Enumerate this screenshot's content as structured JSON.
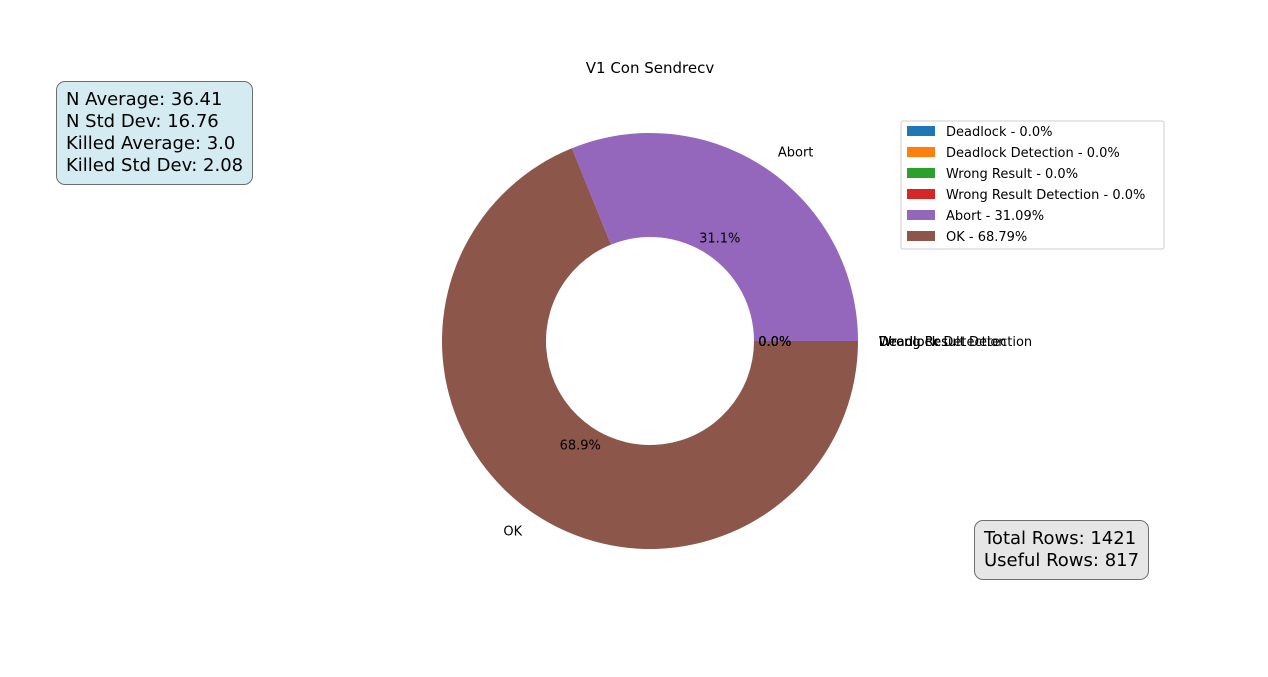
{
  "chart_data": {
    "type": "pie",
    "donut": true,
    "title": "V1 Con Sendrecv",
    "slices": [
      {
        "label": "Deadlock",
        "value": 0.0,
        "pct_label": "0.0%",
        "legend": "Deadlock - 0.0%",
        "color": "#1f77b4"
      },
      {
        "label": "Deadlock Detection",
        "value": 0.0,
        "pct_label": "0.0%",
        "legend": "Deadlock Detection - 0.0%",
        "color": "#ff7f0e"
      },
      {
        "label": "Wrong Result",
        "value": 0.0,
        "pct_label": "0.0%",
        "legend": "Wrong Result - 0.0%",
        "color": "#2ca02c"
      },
      {
        "label": "Wrong Result Detection",
        "value": 0.0,
        "pct_label": "0.0%",
        "legend": "Wrong Result Detection - 0.0%",
        "color": "#d62728"
      },
      {
        "label": "Abort",
        "value": 31.09,
        "pct_label": "31.1%",
        "legend": "Abort - 31.09%",
        "color": "#9467bd"
      },
      {
        "label": "OK",
        "value": 68.79,
        "pct_label": "68.9%",
        "legend": "OK - 68.79%",
        "color": "#8c564b"
      }
    ],
    "legend_position": "upper-right"
  },
  "stats_left": {
    "lines": [
      "N Average: 36.41",
      "N Std Dev: 16.76",
      "Killed Average: 3.0",
      "Killed Std Dev: 2.08"
    ]
  },
  "stats_right": {
    "lines": [
      "Total Rows: 1421",
      "Useful Rows: 817"
    ]
  }
}
